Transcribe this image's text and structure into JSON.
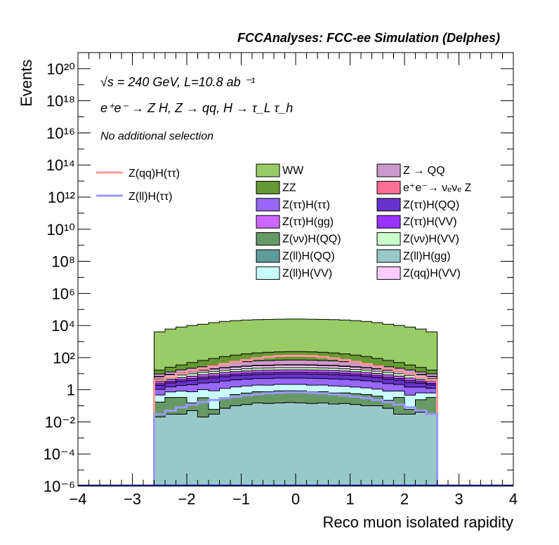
{
  "chart_data": {
    "type": "area",
    "title": "FCCAnalyses: FCC-ee Simulation (Delphes)",
    "xlabel": "Reco muon isolated rapidity",
    "ylabel": "Events",
    "xlim": [
      -4,
      4
    ],
    "ylim": [
      1e-06,
      1e+21
    ],
    "y_scale": "log",
    "stacked": true,
    "legend_placement": "top-right",
    "annotations": {
      "energy_lumi": "√s = 240 GeV, L=10.8 ab ⁻¹",
      "process": "e⁺e⁻ → Z H, Z → qq, H → τ_L τ_h",
      "selection": "No additional selection"
    },
    "x_ticks": [
      "−4",
      "−3",
      "−2",
      "−1",
      "0",
      "1",
      "2",
      "3",
      "4"
    ],
    "y_ticks": [
      {
        "value": 1e-06,
        "label": "10⁻⁶"
      },
      {
        "value": 0.0001,
        "label": "10⁻⁴"
      },
      {
        "value": 0.01,
        "label": "10⁻²"
      },
      {
        "value": 1,
        "label": "1"
      },
      {
        "value": 100.0,
        "label": "10²"
      },
      {
        "value": 10000.0,
        "label": "10⁴"
      },
      {
        "value": 1000000.0,
        "label": "10⁶"
      },
      {
        "value": 100000000.0,
        "label": "10⁸"
      },
      {
        "value": 10000000000.0,
        "label": "10¹⁰"
      },
      {
        "value": 1000000000000.0,
        "label": "10¹²"
      },
      {
        "value": 100000000000000.0,
        "label": "10¹⁴"
      },
      {
        "value": 1e+16,
        "label": "10¹⁶"
      },
      {
        "value": 1e+18,
        "label": "10¹⁸"
      },
      {
        "value": 1e+20,
        "label": "10²⁰"
      }
    ],
    "bin_edges": [
      -2.6,
      -2.4,
      -2.2,
      -2.0,
      -1.8,
      -1.6,
      -1.4,
      -1.2,
      -1.0,
      -0.8,
      -0.6,
      -0.4,
      -0.2,
      0.0,
      0.2,
      0.4,
      0.6,
      0.8,
      1.0,
      1.2,
      1.4,
      1.6,
      1.8,
      2.0,
      2.2,
      2.4,
      2.6
    ],
    "stack_series": [
      {
        "name": "Z(ll)H(gg)",
        "color": "#98c9c9",
        "values": [
          0.02,
          0.03,
          0.03,
          0.05,
          0.02,
          0.03,
          0.07,
          0.1,
          0.12,
          0.15,
          0.14,
          0.15,
          0.16,
          0.15,
          0.14,
          0.15,
          0.13,
          0.14,
          0.12,
          0.1,
          0.1,
          0.07,
          0.03,
          0.03,
          0.04,
          0.03
        ]
      },
      {
        "name": "e⁺e⁻→ νₑνₑ Z",
        "color": "#fe6f97",
        "values": [
          0.0,
          0.0,
          0.0,
          1e-06,
          0.0,
          0.0,
          0.0,
          0.0,
          0.0,
          0.0,
          0.0,
          0.0,
          0.0,
          0.0,
          0.0,
          0.0,
          0.0,
          0.0,
          0.0,
          0.0,
          1e-06,
          1e-06,
          0.0,
          1e-06,
          1e-06,
          0.0
        ]
      },
      {
        "name": "Z(νν)H(QQ)",
        "color": "#669966",
        "values": [
          0.15,
          0.3,
          0.3,
          0.1,
          0.3,
          0.03,
          0.25,
          0.4,
          0.5,
          0.6,
          0.6,
          0.7,
          0.7,
          0.7,
          0.6,
          0.6,
          0.5,
          0.5,
          0.45,
          0.4,
          0.3,
          0.15,
          0.3,
          0.03,
          0.2,
          0.3
        ]
      },
      {
        "name": "Z(ll)H(VV)",
        "color": "#c9ffff",
        "values": [
          0.3,
          0.4,
          0.5,
          0.6,
          0.7,
          0.8,
          0.9,
          1.0,
          1.1,
          1.2,
          1.2,
          1.3,
          1.3,
          1.3,
          1.2,
          1.2,
          1.1,
          1.0,
          0.9,
          0.8,
          0.7,
          0.6,
          0.5,
          0.4,
          0.4,
          0.3
        ]
      },
      {
        "name": "Z(ττ)H(ττ)",
        "color": "#9966ff",
        "values": [
          0.6,
          0.8,
          1.0,
          1.3,
          1.6,
          2.0,
          2.3,
          2.6,
          2.8,
          3.0,
          3.1,
          3.2,
          3.2,
          3.2,
          3.2,
          3.1,
          3.0,
          2.8,
          2.6,
          2.3,
          2.0,
          1.6,
          1.3,
          1.0,
          0.8,
          0.6
        ]
      },
      {
        "name": "Z(ττ)H(QQ)",
        "color": "#6633cc",
        "values": [
          0.8,
          1.1,
          1.4,
          1.8,
          2.2,
          2.6,
          3.0,
          3.4,
          3.7,
          4.0,
          4.2,
          4.3,
          4.4,
          4.4,
          4.3,
          4.2,
          4.0,
          3.7,
          3.4,
          3.0,
          2.6,
          2.2,
          1.8,
          1.4,
          1.1,
          0.8
        ]
      },
      {
        "name": "Z(ττ)H(VV)",
        "color": "#9933ff",
        "values": [
          0.5,
          0.7,
          0.9,
          1.1,
          1.4,
          1.7,
          2.0,
          2.2,
          2.4,
          2.6,
          2.7,
          2.8,
          2.8,
          2.8,
          2.8,
          2.7,
          2.6,
          2.4,
          2.2,
          2.0,
          1.7,
          1.4,
          1.1,
          0.9,
          0.7,
          0.5
        ]
      },
      {
        "name": "Z(ττ)H(gg)",
        "color": "#cc66ff",
        "values": [
          0.9,
          1.2,
          1.6,
          2.0,
          2.5,
          3.0,
          3.4,
          3.8,
          4.2,
          4.5,
          4.7,
          4.8,
          4.9,
          4.9,
          4.8,
          4.7,
          4.5,
          4.2,
          3.8,
          3.4,
          3.0,
          2.5,
          2.0,
          1.6,
          1.2,
          0.9
        ]
      },
      {
        "name": "Z(νν)H(VV)",
        "color": "#ccffcc",
        "values": [
          1.5,
          2.0,
          2.5,
          3.0,
          3.5,
          4.0,
          4.5,
          5.0,
          5.5,
          6.0,
          6.0,
          6.5,
          6.5,
          6.5,
          6.5,
          6.0,
          6.0,
          5.5,
          5.0,
          4.5,
          4.0,
          3.5,
          3.0,
          2.5,
          2.0,
          1.5
        ]
      },
      {
        "name": "Z(qq)H(VV)",
        "color": "#ffccff",
        "values": [
          1.5,
          2.0,
          2.5,
          3.0,
          4.0,
          5.0,
          6.0,
          7.0,
          8.0,
          9.0,
          9.0,
          10.0,
          10.0,
          10.0,
          10.0,
          9.0,
          9.0,
          8.0,
          7.0,
          6.0,
          5.0,
          4.0,
          3.0,
          2.5,
          2.0,
          1.5
        ]
      },
      {
        "name": "Z(ll)H(QQ)",
        "color": "#5e9b9b",
        "values": [
          0.4,
          0.5,
          0.6,
          0.8,
          1.0,
          1.2,
          1.4,
          1.6,
          1.8,
          2.0,
          2.0,
          2.1,
          2.1,
          2.1,
          2.1,
          2.0,
          2.0,
          1.8,
          1.6,
          1.4,
          1.2,
          1.0,
          0.8,
          0.6,
          0.5,
          0.4
        ]
      },
      {
        "name": "Z → QQ",
        "color": "#cc99cc",
        "values": [
          3,
          4,
          6,
          8,
          10,
          14,
          18,
          22,
          26,
          30,
          32,
          34,
          35,
          35,
          34,
          32,
          30,
          26,
          22,
          18,
          14,
          10,
          8,
          6,
          4,
          3
        ]
      },
      {
        "name": "ZZ",
        "color": "#669933",
        "values": [
          7,
          12,
          18,
          28,
          40,
          55,
          75,
          95,
          115,
          135,
          150,
          160,
          165,
          165,
          160,
          150,
          135,
          115,
          95,
          75,
          55,
          40,
          28,
          18,
          12,
          7
        ]
      },
      {
        "name": "WW",
        "color": "#99cc66",
        "values": [
          4000,
          6000,
          8000,
          10000,
          12000,
          15000,
          18000,
          20000,
          22000,
          23000,
          24000,
          24500,
          25000,
          25000,
          24500,
          24000,
          23000,
          22000,
          20000,
          18000,
          15000,
          12000,
          10000,
          8000,
          6000,
          4000
        ]
      }
    ],
    "line_series": [
      {
        "name": "Z(qq)H(ττ)",
        "color": "#ff9999",
        "values": [
          4,
          6,
          10,
          15,
          20,
          30,
          40,
          55,
          70,
          90,
          110,
          125,
          130,
          130,
          125,
          110,
          90,
          70,
          55,
          40,
          30,
          20,
          15,
          10,
          6,
          4
        ]
      },
      {
        "name": "Z(ll)H(ττ)",
        "color": "#9999ff",
        "values": [
          0.03,
          0.05,
          0.08,
          0.12,
          0.17,
          0.23,
          0.3,
          0.37,
          0.45,
          0.52,
          0.6,
          0.65,
          0.7,
          0.7,
          0.65,
          0.6,
          0.52,
          0.45,
          0.37,
          0.3,
          0.23,
          0.17,
          0.12,
          0.08,
          0.05,
          0.03
        ]
      }
    ],
    "legend_columns": [
      [
        "WW",
        "ZZ",
        "Z(ττ)H(ττ)",
        "Z(ττ)H(gg)",
        "Z(νν)H(QQ)",
        "Z(ll)H(QQ)",
        "Z(ll)H(VV)"
      ],
      [
        "Z → QQ",
        "e⁺e⁻→ νₑνₑ Z",
        "Z(ττ)H(QQ)",
        "Z(ττ)H(VV)",
        "Z(νν)H(VV)",
        "Z(ll)H(gg)",
        "Z(qq)H(VV)"
      ]
    ],
    "legend_lines": [
      "Z(qq)H(ττ)",
      "Z(ll)H(ττ)"
    ]
  }
}
